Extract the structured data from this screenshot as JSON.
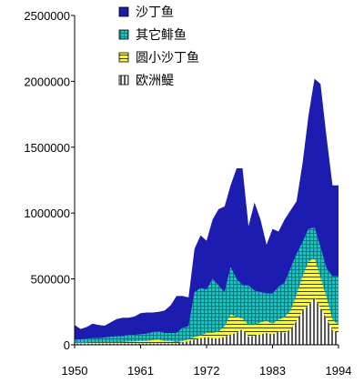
{
  "chart_data": {
    "type": "area",
    "stacked": true,
    "title": "",
    "xlabel": "",
    "ylabel": "",
    "xlim": [
      1950,
      1994
    ],
    "ylim": [
      0,
      2500000
    ],
    "x_ticks": [
      "1950",
      "1961",
      "1972",
      "1983",
      "1994"
    ],
    "y_ticks": [
      "0",
      "500000",
      "1000000",
      "1500000",
      "2000000",
      "2500000"
    ],
    "grid": false,
    "legend_position": "top-left",
    "x": [
      1950,
      1951,
      1952,
      1953,
      1954,
      1955,
      1956,
      1957,
      1958,
      1959,
      1960,
      1961,
      1962,
      1963,
      1964,
      1965,
      1966,
      1967,
      1968,
      1969,
      1970,
      1971,
      1972,
      1973,
      1974,
      1975,
      1976,
      1977,
      1978,
      1979,
      1980,
      1981,
      1982,
      1983,
      1984,
      1985,
      1986,
      1987,
      1988,
      1989,
      1990,
      1991,
      1992,
      1993,
      1994
    ],
    "series": [
      {
        "name": "欧洲鳀",
        "color": "#d9d9d9",
        "pattern": "vertical-stripes",
        "values": [
          10000,
          10000,
          10000,
          10000,
          10000,
          10000,
          10000,
          10000,
          10000,
          10000,
          10000,
          10000,
          10000,
          10000,
          10000,
          10000,
          10000,
          10000,
          20000,
          30000,
          40000,
          50000,
          60000,
          50000,
          50000,
          60000,
          80000,
          90000,
          120000,
          60000,
          70000,
          80000,
          90000,
          80000,
          100000,
          90000,
          120000,
          180000,
          260000,
          300000,
          360000,
          280000,
          200000,
          110000,
          90000
        ]
      },
      {
        "name": "圆小沙丁鱼",
        "color": "#ffff00",
        "pattern": "horizontal-stripes",
        "values": [
          5000,
          5000,
          5000,
          10000,
          10000,
          10000,
          10000,
          10000,
          10000,
          15000,
          15000,
          20000,
          20000,
          25000,
          30000,
          20000,
          20000,
          10000,
          10000,
          10000,
          20000,
          20000,
          30000,
          40000,
          50000,
          80000,
          150000,
          120000,
          80000,
          90000,
          80000,
          90000,
          90000,
          80000,
          90000,
          120000,
          140000,
          200000,
          260000,
          330000,
          300000,
          230000,
          160000,
          80000,
          60000
        ]
      },
      {
        "name": "其它鲱鱼",
        "color": "#00cccc",
        "pattern": "grid",
        "values": [
          25000,
          25000,
          30000,
          30000,
          30000,
          35000,
          40000,
          45000,
          45000,
          50000,
          50000,
          50000,
          55000,
          60000,
          60000,
          60000,
          60000,
          70000,
          100000,
          100000,
          340000,
          360000,
          330000,
          410000,
          350000,
          260000,
          360000,
          290000,
          250000,
          300000,
          260000,
          230000,
          210000,
          230000,
          250000,
          260000,
          320000,
          310000,
          260000,
          250000,
          230000,
          230000,
          220000,
          330000,
          370000
        ]
      },
      {
        "name": "沙丁鱼",
        "color": "#1c1cb0",
        "pattern": "solid",
        "values": [
          110000,
          80000,
          90000,
          110000,
          100000,
          90000,
          110000,
          130000,
          140000,
          130000,
          140000,
          160000,
          160000,
          150000,
          150000,
          170000,
          210000,
          280000,
          240000,
          220000,
          330000,
          400000,
          370000,
          450000,
          580000,
          650000,
          620000,
          840000,
          890000,
          450000,
          670000,
          550000,
          370000,
          490000,
          420000,
          480000,
          440000,
          400000,
          600000,
          860000,
          1130000,
          1240000,
          1000000,
          690000,
          690000
        ]
      }
    ]
  }
}
